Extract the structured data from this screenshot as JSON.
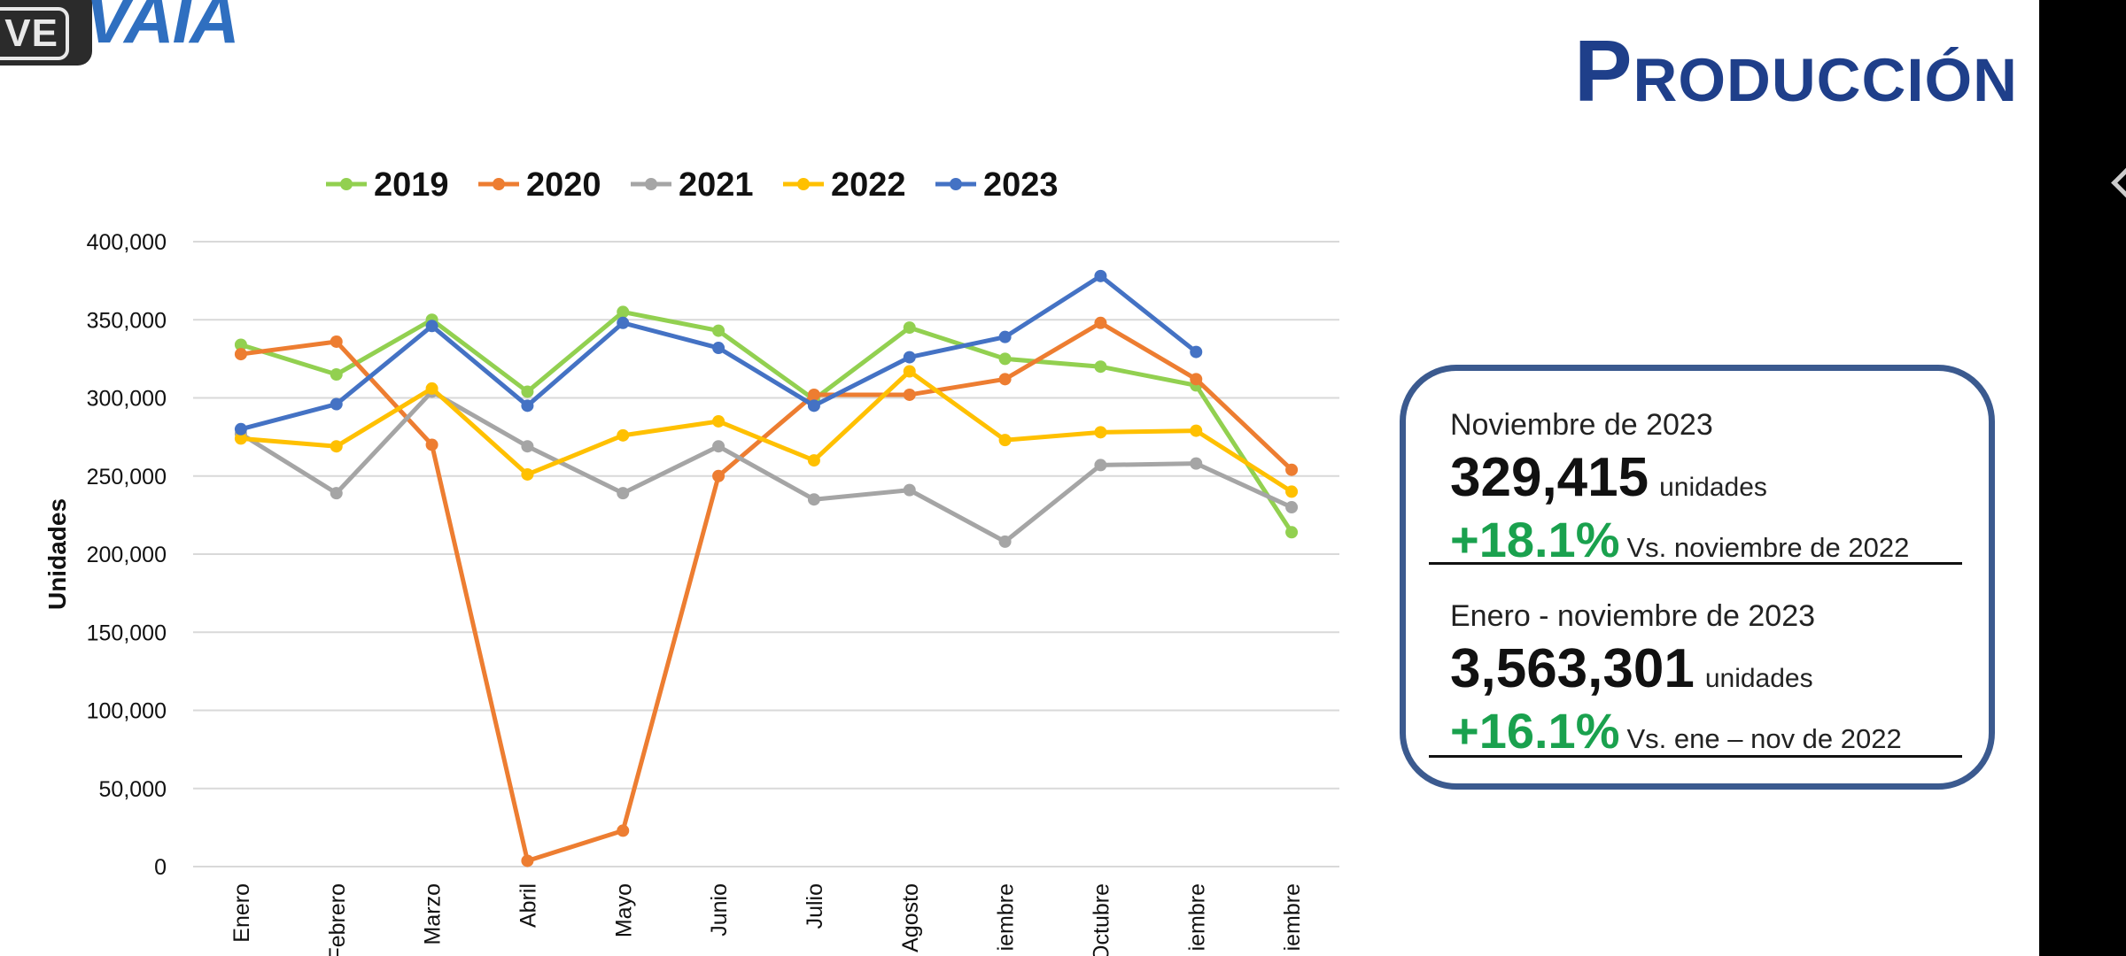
{
  "header": {
    "live_badge": "VE",
    "logo_text": "VAIA",
    "title": "Producción"
  },
  "chart_data": {
    "type": "line",
    "title": "",
    "xlabel": "",
    "ylabel": "Unidades",
    "ylim": [
      0,
      400000
    ],
    "y_ticks": [
      "0",
      "50,000",
      "100,000",
      "150,000",
      "200,000",
      "250,000",
      "300,000",
      "350,000",
      "400,000"
    ],
    "categories": [
      "Enero",
      "Febrero",
      "Marzo",
      "Abril",
      "Mayo",
      "Junio",
      "Julio",
      "Agosto",
      "Septiembre",
      "Octubre",
      "Noviembre",
      "Diciembre"
    ],
    "category_labels": [
      "Enero",
      "Febrero",
      "Marzo",
      "Abril",
      "Mayo",
      "Junio",
      "Julio",
      "Agosto",
      "iembre",
      "Octubre",
      "iembre",
      "iembre"
    ],
    "grid": true,
    "legend_position": "top",
    "series": [
      {
        "name": "2019",
        "color": "#92d050",
        "values": [
          334000,
          315000,
          350000,
          304000,
          355000,
          343000,
          299000,
          345000,
          325000,
          320000,
          308000,
          214000
        ]
      },
      {
        "name": "2020",
        "color": "#ed7d31",
        "values": [
          328000,
          336000,
          270000,
          3700,
          23000,
          250000,
          302000,
          302000,
          312000,
          348000,
          312000,
          254000
        ]
      },
      {
        "name": "2021",
        "color": "#a5a5a5",
        "values": [
          277000,
          239000,
          304000,
          269000,
          239000,
          269000,
          235000,
          241000,
          208000,
          257000,
          258000,
          230000
        ]
      },
      {
        "name": "2022",
        "color": "#ffc000",
        "values": [
          274000,
          269000,
          306000,
          251000,
          276000,
          285000,
          260000,
          317000,
          273000,
          278000,
          279000,
          240000
        ]
      },
      {
        "name": "2023",
        "color": "#4472c4",
        "values": [
          280000,
          296000,
          346000,
          295000,
          348000,
          332000,
          295000,
          326000,
          339000,
          378000,
          329415,
          null
        ]
      }
    ]
  },
  "summary": {
    "monthly": {
      "label": "Noviembre de 2023",
      "value": "329,415",
      "unit": "unidades",
      "change": "+18.1%",
      "comparison": "Vs. noviembre de 2022"
    },
    "ytd": {
      "label": "Enero - noviembre de 2023",
      "value": "3,563,301",
      "unit": "unidades",
      "change": "+16.1%",
      "comparison": "Vs. ene – nov de 2022"
    }
  }
}
